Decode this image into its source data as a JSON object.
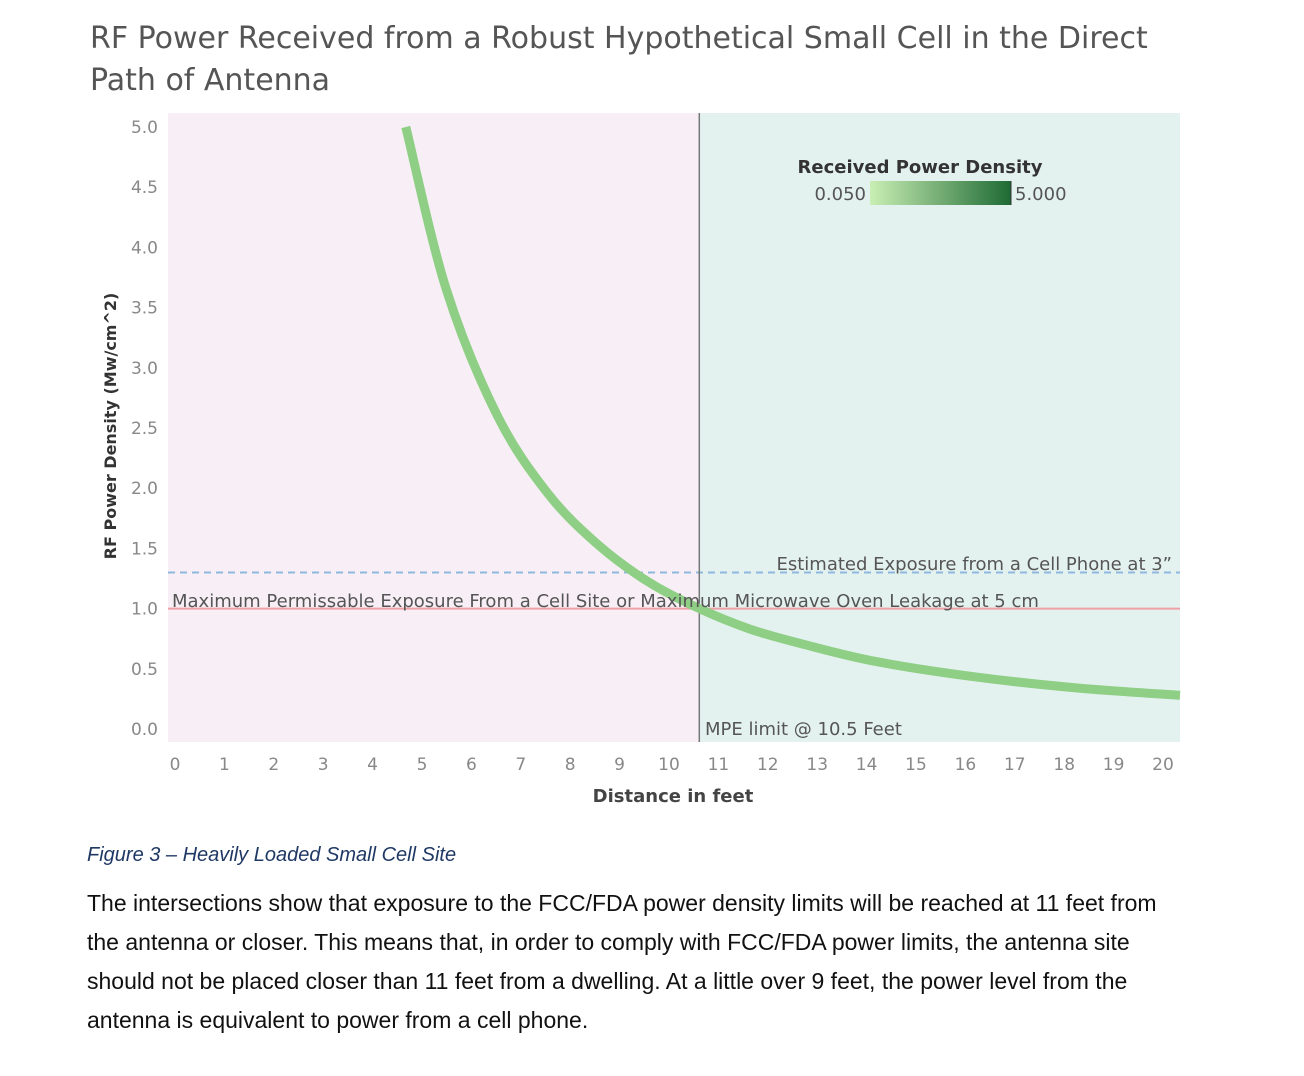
{
  "chart_data": {
    "type": "line",
    "title": "RF Power Received from a Robust Hypothetical Small Cell in the Direct Path of Antenna",
    "xlabel": "Distance in feet",
    "ylabel": "RF Power Density (Mw/cm^2)",
    "xlim": [
      0,
      20
    ],
    "ylim": [
      0,
      5
    ],
    "x_ticks": [
      "0",
      "1",
      "2",
      "3",
      "4",
      "5",
      "6",
      "7",
      "8",
      "9",
      "10",
      "11",
      "12",
      "13",
      "14",
      "15",
      "16",
      "17",
      "18",
      "19",
      "20"
    ],
    "y_ticks": [
      "0.0",
      "0.5",
      "1.0",
      "1.5",
      "2.0",
      "2.5",
      "3.0",
      "3.5",
      "4.0",
      "4.5",
      "5.0"
    ],
    "grid": false,
    "series": [
      {
        "x": [
          4.7,
          5.5,
          6.5,
          7.5,
          8.5,
          9.5,
          10.5,
          11.5,
          12.5,
          14,
          16,
          18,
          20
        ],
        "y": [
          5.0,
          3.65,
          2.61,
          1.96,
          1.53,
          1.22,
          1.0,
          0.83,
          0.71,
          0.56,
          0.43,
          0.34,
          0.28
        ],
        "color_scale": "0.050 → 5.000 (light to dark green)"
      }
    ],
    "regions": [
      {
        "x_range": [
          0,
          10.5
        ],
        "color": "#f7eff5"
      },
      {
        "x_range": [
          10.5,
          20
        ],
        "color": "#e4f2ef"
      }
    ],
    "reference_lines": [
      {
        "axis": "y",
        "value": 1.0,
        "style": "solid",
        "color": "#f0a0a8",
        "label": "Maximum Permissable Exposure From a Cell Site or Maximum Microwave Oven Leakage at 5 cm"
      },
      {
        "axis": "y",
        "value": 1.3,
        "style": "dashed",
        "color": "#8fb8e0",
        "label": "Estimated Exposure from a Cell Phone at 3”"
      },
      {
        "axis": "x",
        "value": 10.5,
        "style": "solid",
        "color": "#777777",
        "label": "MPE limit @ 10.5 Feet"
      }
    ],
    "legend": {
      "title": "Received Power Density",
      "min_label": "0.050",
      "max_label": "5.000",
      "min_color": "#c9efb4",
      "max_color": "#1e6a34",
      "position": "top-right"
    }
  },
  "caption": "Figure 3 – Heavily Loaded Small Cell Site",
  "body_text": "The intersections show that exposure to the FCC/FDA power density limits will be reached at 11 feet from the antenna or closer. This means that, in order to comply with FCC/FDA power limits, the antenna site should not be placed closer than 11 feet from a dwelling. At a little over 9 feet, the power level from the antenna is equivalent to power from a cell phone."
}
